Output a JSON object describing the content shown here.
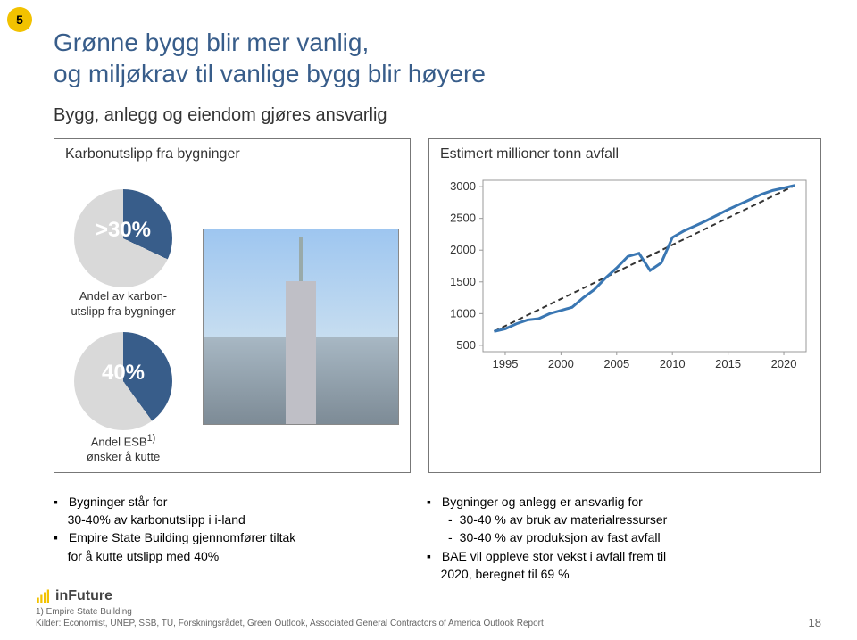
{
  "badge": "5",
  "title_line1": "Grønne bygg blir mer vanlig,",
  "title_line2": "og miljøkrav til vanlige bygg blir høyere",
  "subtitle": "Bygg, anlegg og eiendom gjøres ansvarlig",
  "left_panel": {
    "title": "Karbonutslipp fra bygninger",
    "pie1": {
      "value": 32,
      "label": ">30%",
      "color": "#385d8a",
      "rest": "#d9d9d9",
      "caption_l1": "Andel av karbon-",
      "caption_l2": "utslipp fra bygninger"
    },
    "pie2": {
      "value": 40,
      "label": "40%",
      "color": "#385d8a",
      "rest": "#d9d9d9",
      "caption_l1": "Andel ESB",
      "caption_sup": "1)",
      "caption_l2": "ønsker å kutte"
    }
  },
  "right_panel": {
    "title": "Estimert millioner tonn avfall",
    "chart": {
      "y_ticks": [
        500,
        1000,
        1500,
        2000,
        2500,
        3000
      ],
      "x_ticks": [
        1995,
        2000,
        2005,
        2010,
        2015,
        2020
      ],
      "xlim": [
        1993,
        2022
      ],
      "ylim": [
        400,
        3100
      ],
      "series": {
        "color": "#3a77b3",
        "dash_color": "#333333",
        "points": [
          [
            1994,
            720
          ],
          [
            1995,
            760
          ],
          [
            1996,
            840
          ],
          [
            1997,
            900
          ],
          [
            1998,
            920
          ],
          [
            1999,
            1000
          ],
          [
            2000,
            1050
          ],
          [
            2001,
            1100
          ],
          [
            2002,
            1250
          ],
          [
            2003,
            1380
          ],
          [
            2004,
            1560
          ],
          [
            2005,
            1720
          ],
          [
            2006,
            1900
          ],
          [
            2007,
            1950
          ],
          [
            2008,
            1680
          ],
          [
            2009,
            1800
          ],
          [
            2010,
            2200
          ],
          [
            2011,
            2300
          ],
          [
            2012,
            2380
          ],
          [
            2013,
            2460
          ],
          [
            2014,
            2550
          ],
          [
            2015,
            2640
          ],
          [
            2016,
            2720
          ],
          [
            2017,
            2800
          ],
          [
            2018,
            2880
          ],
          [
            2019,
            2940
          ],
          [
            2020,
            2980
          ],
          [
            2021,
            3020
          ]
        ]
      }
    }
  },
  "bullets_left": {
    "b1_pre": "Bygninger står for",
    "b1_mid": "30-40% av karbonutslipp i i-land",
    "b2_l1": "Empire State Building gjennomfører tiltak",
    "b2_l2": "for å kutte utslipp med 40%"
  },
  "bullets_right": {
    "b1": "Bygninger og anlegg er ansvarlig for",
    "b1_sub1": "30-40 % av bruk av materialressurser",
    "b1_sub2": "30-40 % av produksjon av fast avfall",
    "b2_l1": "BAE vil oppleve stor vekst i avfall frem til",
    "b2_l2": "2020, beregnet til 69 %"
  },
  "footnote1": "1)   Empire State Building",
  "footnote2": "Kilder: Economist, UNEP, SSB, TU, Forskningsrådet, Green Outlook, Associated General Contractors of America Outlook Report",
  "logo_text": "inFuture",
  "page_number": "18",
  "colors": {
    "title": "#385d8a",
    "accent": "#3a77b3"
  }
}
